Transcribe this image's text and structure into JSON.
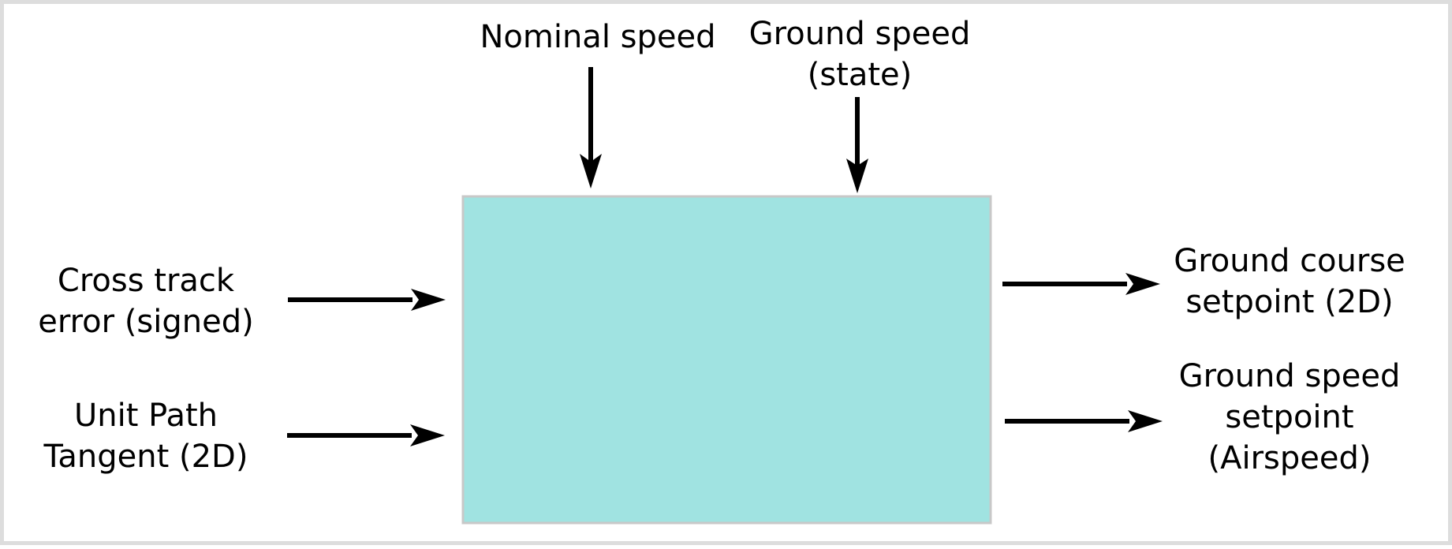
{
  "colors": {
    "block_fill": "#a0e3e1",
    "block_border": "#c8c8c8",
    "frame_border": "#dddddd",
    "arrow": "#000000"
  },
  "inputs": {
    "nominal_speed": [
      "Nominal speed"
    ],
    "ground_speed_state": [
      "Ground speed",
      "(state)"
    ],
    "cross_track_error": [
      "Cross track",
      "error (signed)"
    ],
    "unit_path_tangent": [
      "Unit Path",
      "Tangent (2D)"
    ]
  },
  "outputs": {
    "ground_course_setpoint": [
      "Ground course",
      "setpoint (2D)"
    ],
    "ground_speed_setpoint": [
      "Ground speed",
      "setpoint",
      "(Airspeed)"
    ]
  }
}
